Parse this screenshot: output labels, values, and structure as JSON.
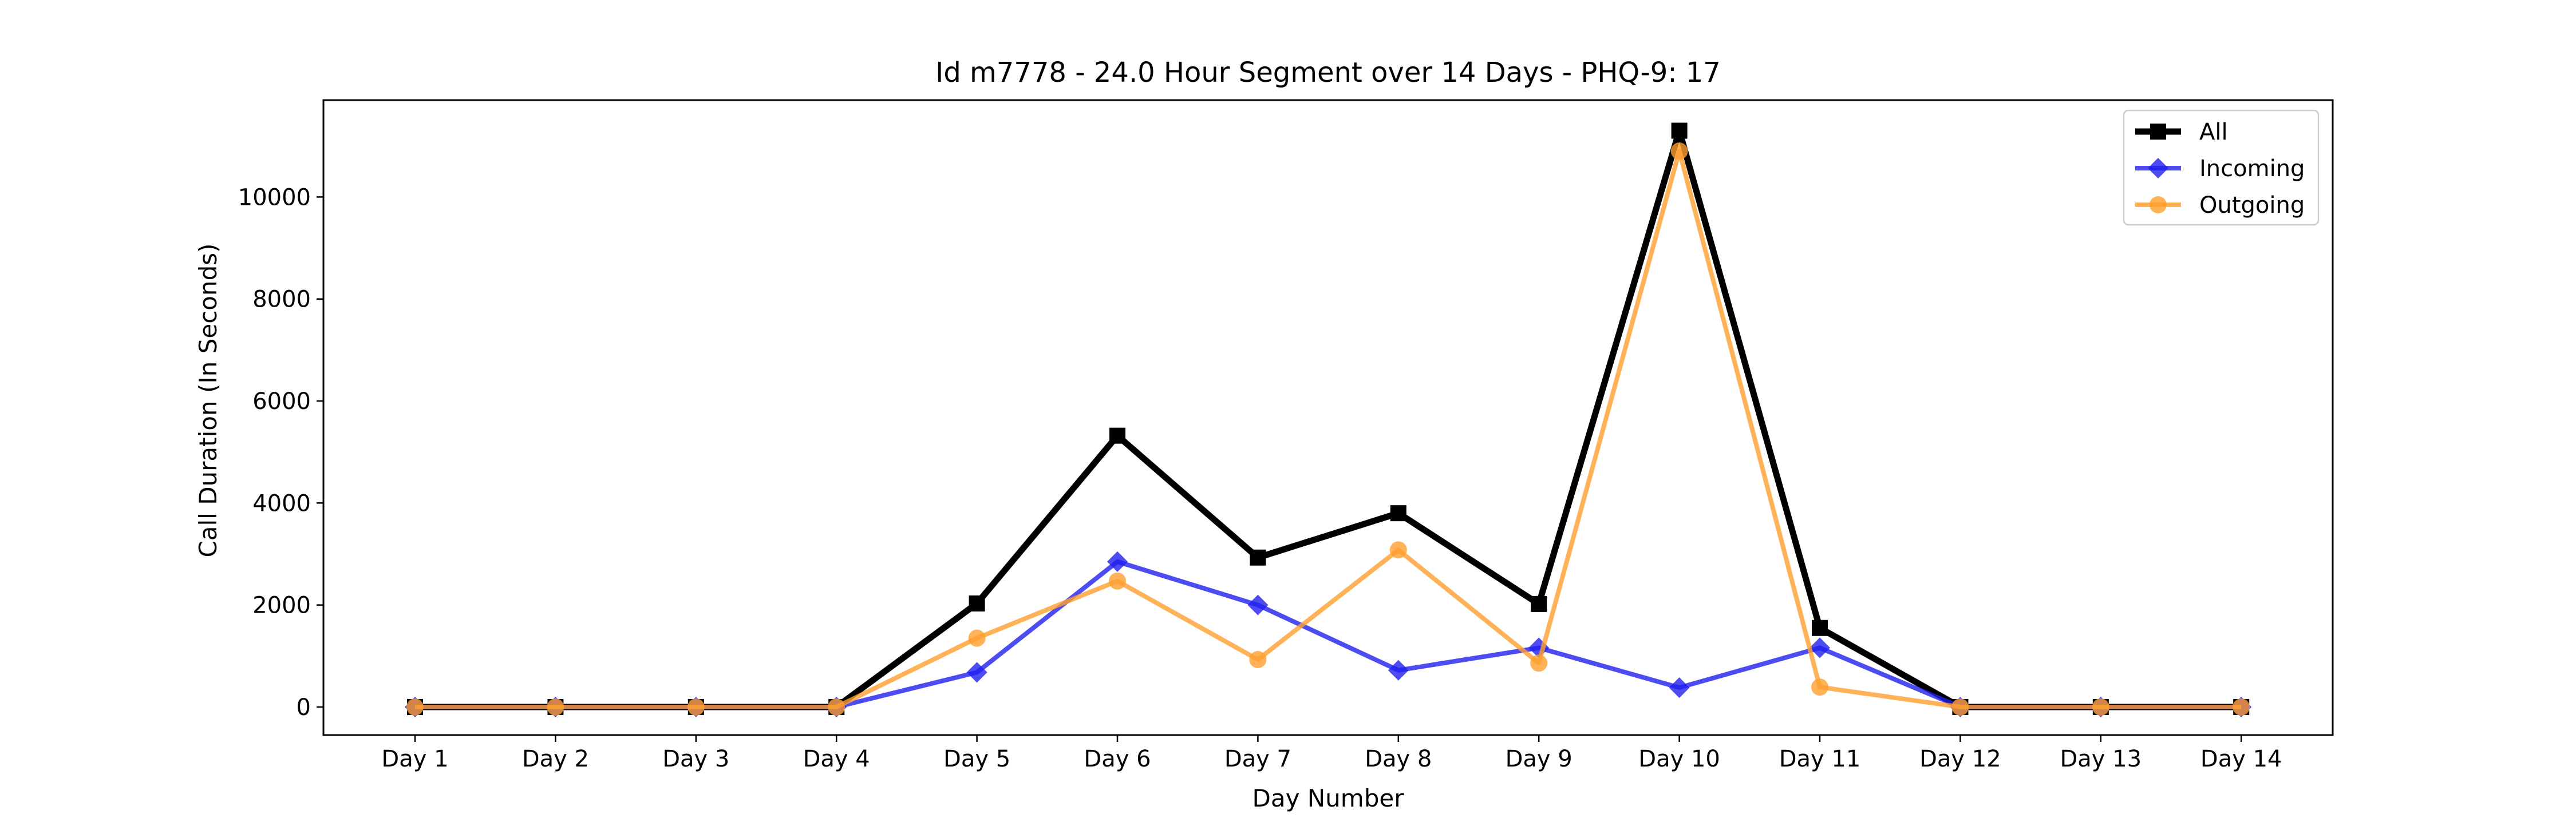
{
  "chart_data": {
    "type": "line",
    "title": "Id m7778 - 24.0 Hour Segment over 14 Days - PHQ-9: 17",
    "xlabel": "Day Number",
    "ylabel": "Call Duration (In Seconds)",
    "categories": [
      "Day 1",
      "Day 2",
      "Day 3",
      "Day 4",
      "Day 5",
      "Day 6",
      "Day 7",
      "Day 8",
      "Day 9",
      "Day 10",
      "Day 11",
      "Day 12",
      "Day 13",
      "Day 14"
    ],
    "yticks": [
      0,
      2000,
      4000,
      6000,
      8000,
      10000
    ],
    "ylim": [
      -550,
      11900
    ],
    "grid": false,
    "legend_position": "top-right",
    "series": [
      {
        "name": "All",
        "color": "#000000",
        "marker": "square",
        "values": [
          0,
          0,
          0,
          0,
          2030,
          5320,
          2930,
          3800,
          2020,
          11300,
          1550,
          0,
          0,
          0
        ]
      },
      {
        "name": "Incoming",
        "color": "#1f1fee",
        "marker": "diamond",
        "values": [
          0,
          0,
          0,
          0,
          680,
          2850,
          2000,
          720,
          1160,
          380,
          1160,
          0,
          0,
          0
        ]
      },
      {
        "name": "Outgoing",
        "color": "#ff9f2e",
        "marker": "circle",
        "values": [
          0,
          0,
          0,
          0,
          1350,
          2470,
          930,
          3080,
          860,
          10900,
          390,
          0,
          0,
          0
        ]
      }
    ]
  }
}
